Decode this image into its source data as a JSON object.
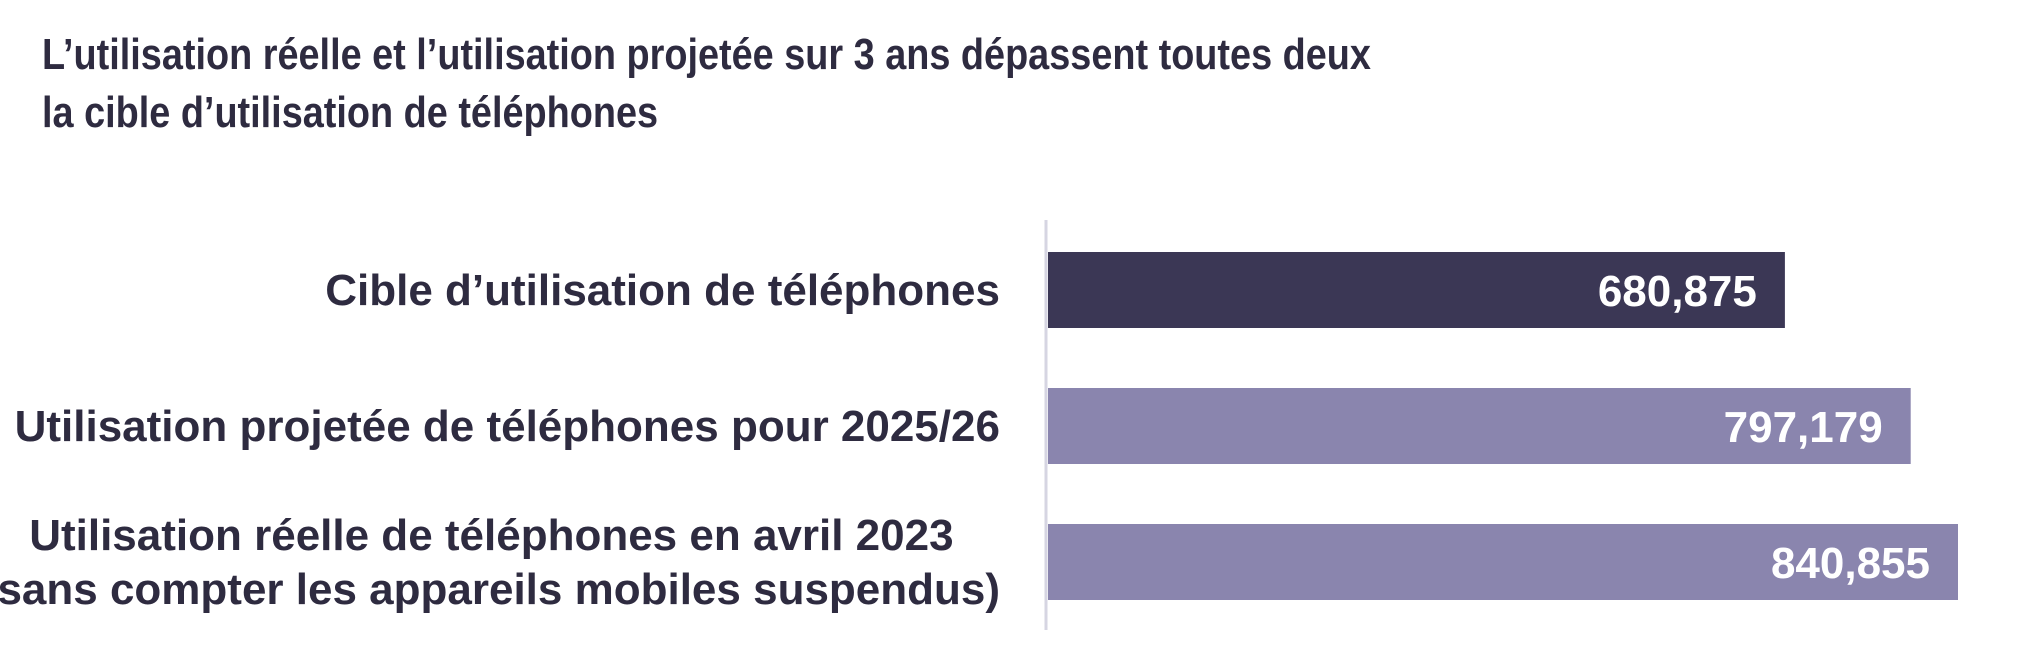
{
  "chart_data": {
    "type": "bar",
    "orientation": "horizontal",
    "title": [
      "L’utilisation réelle et l’utilisation projetée sur 3 ans dépassent toutes deux",
      "la cible d’utilisation de téléphones"
    ],
    "categories": [
      [
        "Cible d’utilisation de téléphones"
      ],
      [
        "Utilisation projetée de téléphones pour 2025/26"
      ],
      [
        "Utilisation réelle de téléphones en avril  2023",
        "(sans compter les appareils mobiles suspendus)"
      ]
    ],
    "values": [
      680875,
      797179,
      840855
    ],
    "value_labels": [
      "680,875",
      "797,179",
      "840,855"
    ],
    "bar_colors": [
      "#3b3755",
      "#8a85ae",
      "#8a85ae"
    ],
    "axis_color": "#d6d5e2",
    "xlim": [
      0,
      840855
    ],
    "grid": false,
    "legend": "none"
  }
}
